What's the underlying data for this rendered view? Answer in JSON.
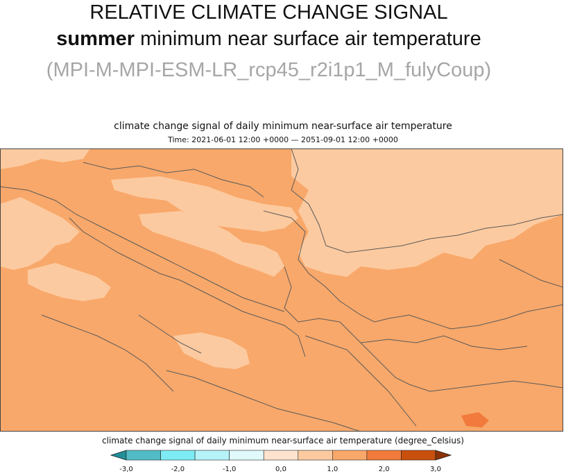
{
  "heading": {
    "line1": "RELATIVE CLIMATE CHANGE SIGNAL",
    "line2_bold": "summer",
    "line2_rest": " minimum near surface air temperature",
    "line3": "(MPI-M-MPI-ESM-LR_rcp45_r2i1p1_M_fulyCoup)"
  },
  "map": {
    "title": "climate change signal of daily minimum near-surface air temperature",
    "time": "Time: 2021-06-01 12:00 +0000 — 2051-09-01 12:00 +0000",
    "colors": {
      "light": "#fccaa0",
      "medium": "#f8a86a",
      "dark": "#f17a3c",
      "border": "#5a5a5a",
      "frame": "#444444"
    }
  },
  "colorbar": {
    "title": "climate change signal of daily minimum near-surface air temperature (degree_Celsius)",
    "ticks": [
      "-3,0",
      "-2,0",
      "-1,0",
      "0,0",
      "1,0",
      "2,0",
      "3,0"
    ],
    "colors": [
      "#218e98",
      "#52bcc6",
      "#7eebf4",
      "#b5f3f8",
      "#e0fafc",
      "#fde2cd",
      "#fccaa0",
      "#f8a86a",
      "#f17a3c",
      "#c9500c",
      "#8c3206"
    ]
  }
}
